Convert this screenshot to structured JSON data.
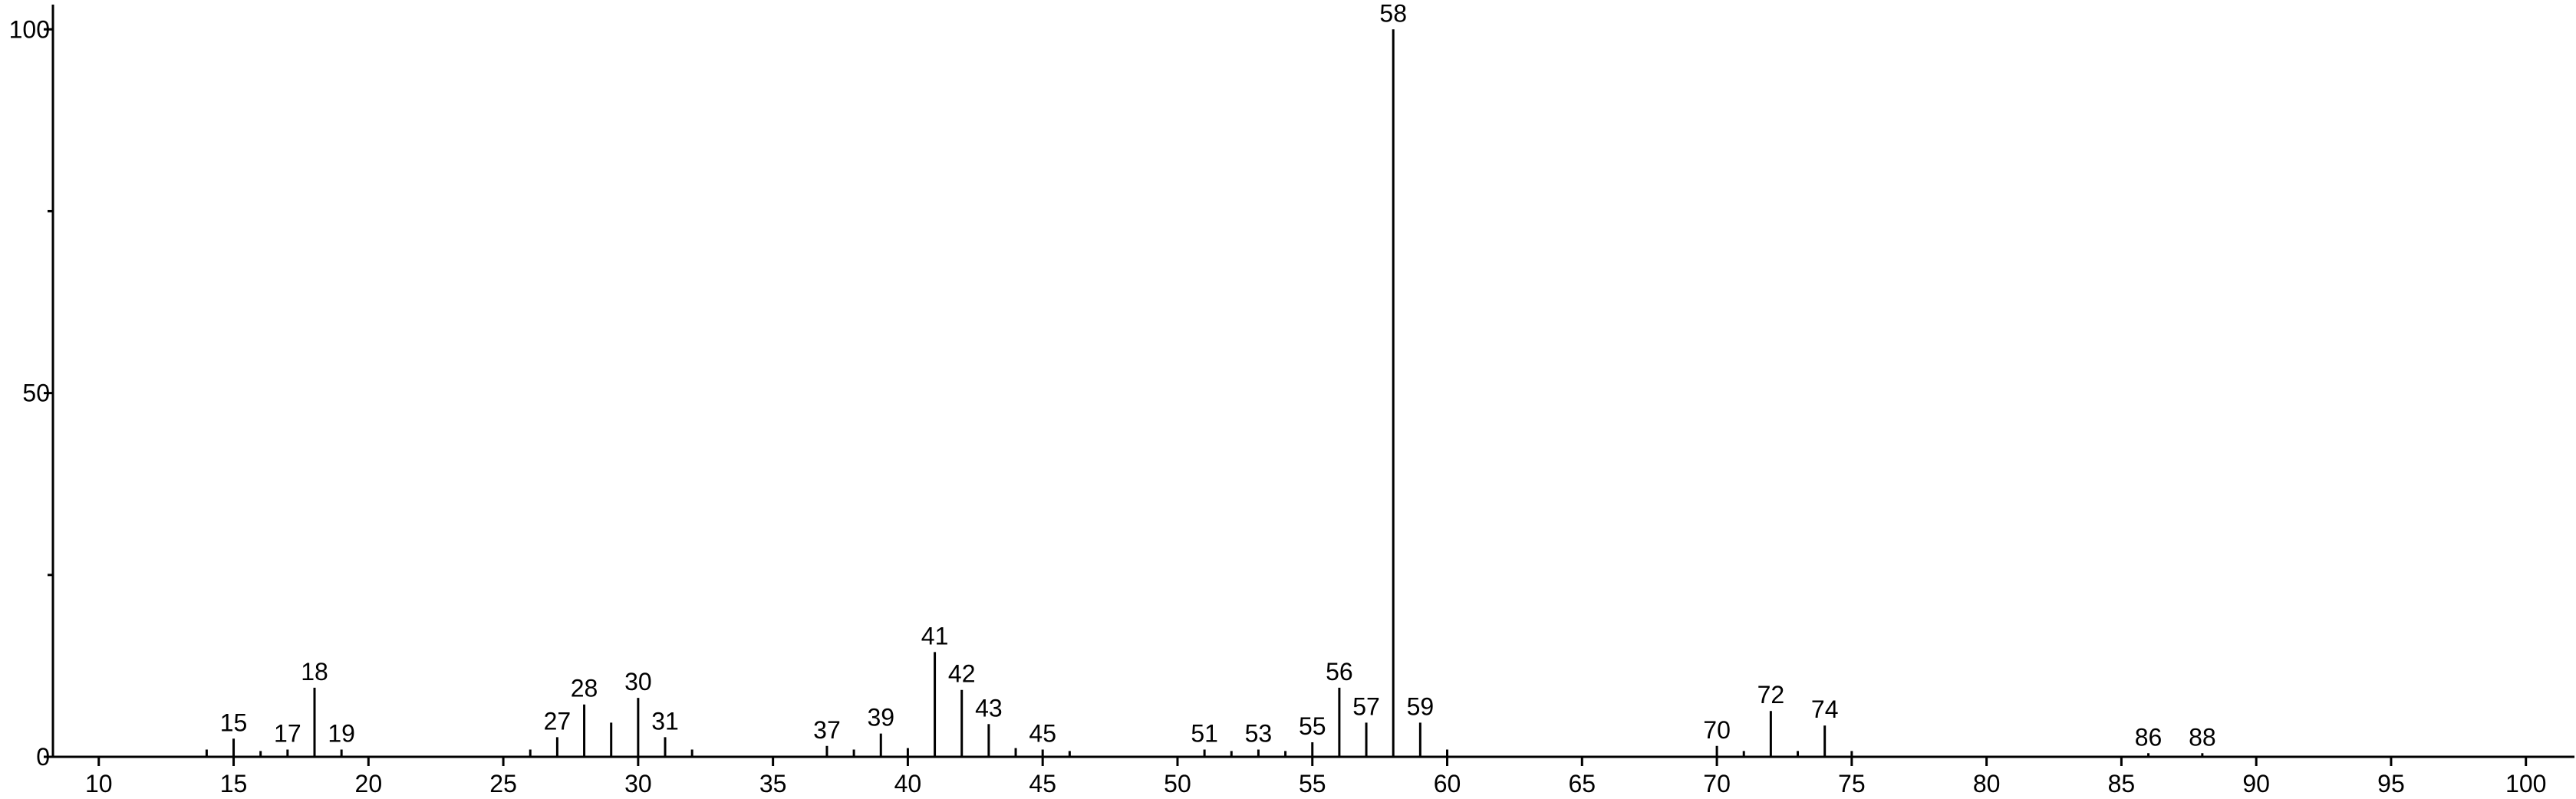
{
  "chart_data": {
    "type": "stem",
    "series": [
      {
        "show_labels": true,
        "color": "#000000",
        "x": [
          15,
          17,
          18,
          19,
          27,
          28,
          30,
          31,
          37,
          39,
          41,
          42,
          43,
          45,
          51,
          53,
          55,
          56,
          57,
          58,
          59,
          70,
          72,
          74,
          86,
          88
        ],
        "values": [
          2.5,
          1,
          9.5,
          1,
          2.7,
          7.2,
          8.1,
          2.7,
          1.5,
          3.2,
          14.4,
          9.2,
          4.5,
          1,
          1,
          1,
          2,
          9.5,
          4.7,
          100,
          4.7,
          1.5,
          6.3,
          4.3,
          0.5,
          0.5
        ]
      },
      {
        "show_labels": false,
        "color": "#000000",
        "x": [
          14,
          16,
          26,
          29,
          32,
          38,
          40,
          44,
          46,
          52,
          54,
          60,
          71,
          73,
          75
        ],
        "values": [
          1,
          0.8,
          1,
          4.7,
          1,
          1,
          1.2,
          1.2,
          0.8,
          0.8,
          0.8,
          1,
          0.8,
          0.8,
          0.8
        ]
      }
    ],
    "xlim": [
      8.3,
      101.8
    ],
    "xticks": [
      10,
      15,
      20,
      25,
      30,
      35,
      40,
      45,
      50,
      55,
      60,
      65,
      70,
      75,
      80,
      85,
      90,
      95,
      100
    ],
    "ylim": [
      0,
      103.4
    ],
    "yticks": [
      0,
      50,
      100
    ],
    "yminorticks": [
      25,
      75
    ]
  }
}
